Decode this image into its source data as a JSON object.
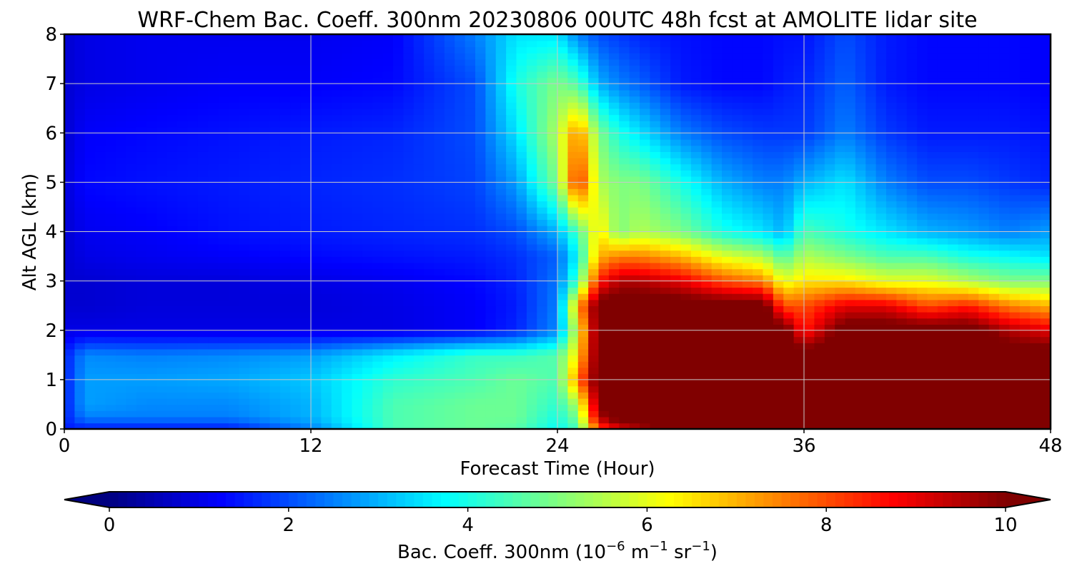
{
  "chart_data": {
    "type": "heatmap",
    "title": "WRF-Chem Bac. Coeff. 300nm  20230806 00UTC 48h fcst at AMOLITE lidar site",
    "xlabel": "Forecast Time (Hour)",
    "ylabel": "Alt AGL (km)",
    "xlim": [
      0,
      48
    ],
    "ylim": [
      0,
      8
    ],
    "xticks": [
      0,
      12,
      24,
      36,
      48
    ],
    "yticks": [
      0,
      1,
      2,
      3,
      4,
      5,
      6,
      7,
      8
    ],
    "grid": true,
    "colormap": "jet",
    "colorbar": {
      "label_main": "Bac. Coeff. 300nm  (10",
      "exp1": "−6",
      "label_mid": " m",
      "exp2": "−1",
      "label_mid2": " sr",
      "exp3": "−1",
      "label_end": ")",
      "range": [
        0,
        10
      ],
      "ticks": [
        0,
        2,
        4,
        6,
        8,
        10
      ],
      "extend": "both",
      "orientation": "horizontal"
    },
    "z_description": "backscatter coefficient field sampled on a coarse grid (approximate)",
    "x": [
      0,
      1,
      4,
      8,
      12,
      16,
      20,
      22,
      24,
      25,
      26,
      27,
      28,
      30,
      32,
      34,
      35,
      36,
      38,
      40,
      42,
      44,
      46,
      48
    ],
    "y": [
      0,
      0.25,
      0.5,
      1,
      1.5,
      2,
      2.5,
      3,
      3.5,
      4,
      5,
      6,
      7,
      8
    ],
    "z": [
      [
        1.5,
        1.5,
        1.5,
        1.5,
        2.5,
        4.5,
        4.8,
        4.6,
        3.8,
        4.5,
        8.0,
        9.0,
        9.5,
        10.5,
        10.5,
        10.5,
        10.5,
        10.5,
        10.5,
        10.5,
        10.5,
        10.5,
        10.5,
        10.5
      ],
      [
        1.5,
        2.5,
        2.5,
        2.5,
        3.0,
        4.5,
        4.8,
        4.8,
        4.0,
        5.0,
        9.5,
        10.5,
        10.5,
        10.5,
        10.5,
        10.5,
        10.5,
        10.5,
        10.5,
        10.5,
        10.5,
        10.5,
        10.5,
        10.5
      ],
      [
        1.5,
        2.8,
        2.6,
        2.6,
        3.0,
        4.5,
        4.8,
        4.8,
        4.2,
        5.5,
        10.0,
        10.5,
        10.5,
        10.5,
        10.5,
        10.5,
        10.5,
        10.5,
        10.5,
        10.5,
        10.5,
        10.5,
        10.5,
        10.5
      ],
      [
        1.5,
        2.8,
        2.8,
        2.9,
        3.2,
        4.2,
        4.5,
        4.8,
        4.5,
        7.5,
        10.5,
        10.5,
        10.5,
        10.5,
        10.5,
        10.5,
        10.5,
        10.5,
        10.5,
        10.5,
        10.5,
        10.5,
        10.5,
        10.5
      ],
      [
        1.5,
        2.6,
        2.5,
        2.6,
        2.8,
        3.6,
        4.3,
        4.3,
        4.6,
        6.5,
        10.5,
        10.5,
        10.5,
        10.5,
        10.5,
        10.5,
        10.5,
        10.5,
        10.5,
        10.5,
        10.5,
        10.5,
        10.5,
        10.5
      ],
      [
        1.0,
        1.0,
        1.0,
        1.0,
        1.0,
        1.0,
        1.2,
        1.6,
        2.6,
        6.0,
        10.5,
        10.5,
        10.5,
        10.5,
        10.5,
        10.5,
        10.5,
        8.5,
        10.5,
        10.5,
        10.5,
        10.5,
        9.5,
        9.0
      ],
      [
        0.8,
        0.8,
        0.9,
        0.9,
        0.9,
        1.0,
        1.2,
        1.5,
        2.5,
        7.0,
        10.5,
        10.5,
        10.5,
        10.5,
        10.5,
        10.5,
        8.0,
        8.0,
        9.0,
        9.0,
        8.0,
        8.5,
        7.5,
        7.0
      ],
      [
        0.8,
        0.8,
        0.9,
        0.9,
        1.0,
        1.1,
        1.3,
        1.6,
        2.4,
        4.5,
        8.5,
        9.5,
        9.5,
        9.0,
        8.0,
        7.5,
        6.0,
        6.5,
        6.5,
        6.0,
        6.0,
        5.5,
        5.0,
        5.0
      ],
      [
        0.8,
        1.0,
        1.1,
        1.2,
        1.3,
        1.4,
        1.5,
        1.7,
        2.2,
        3.8,
        7.0,
        7.5,
        7.5,
        7.0,
        6.0,
        5.5,
        4.5,
        5.5,
        5.0,
        4.5,
        4.5,
        4.0,
        3.8,
        3.5
      ],
      [
        0.8,
        1.1,
        1.2,
        1.4,
        1.5,
        1.6,
        1.7,
        2.0,
        3.0,
        4.5,
        6.5,
        5.0,
        5.5,
        5.0,
        4.0,
        3.5,
        3.0,
        4.5,
        4.0,
        3.5,
        3.0,
        2.8,
        2.5,
        2.8
      ],
      [
        0.9,
        1.3,
        1.4,
        1.5,
        1.6,
        1.7,
        1.9,
        2.8,
        5.0,
        8.5,
        5.5,
        5.0,
        5.0,
        4.0,
        3.0,
        2.5,
        2.5,
        3.0,
        3.5,
        2.5,
        2.0,
        2.0,
        1.8,
        1.6
      ],
      [
        0.8,
        1.2,
        1.3,
        1.4,
        1.5,
        1.6,
        2.0,
        3.5,
        5.5,
        7.5,
        5.0,
        4.0,
        3.5,
        2.5,
        2.0,
        1.8,
        1.8,
        1.8,
        2.5,
        1.8,
        1.5,
        1.5,
        1.5,
        1.4
      ],
      [
        0.8,
        1.0,
        1.1,
        1.2,
        1.2,
        1.3,
        2.0,
        4.0,
        5.0,
        4.5,
        3.0,
        2.5,
        2.2,
        1.5,
        1.3,
        1.3,
        1.5,
        1.6,
        2.2,
        1.5,
        1.3,
        1.3,
        1.3,
        1.2
      ],
      [
        0.8,
        1.0,
        1.1,
        1.1,
        1.1,
        1.2,
        2.5,
        3.5,
        3.5,
        2.5,
        2.0,
        1.8,
        1.6,
        1.4,
        1.3,
        1.3,
        1.4,
        1.4,
        2.0,
        1.5,
        1.3,
        1.3,
        1.3,
        1.2
      ]
    ]
  }
}
